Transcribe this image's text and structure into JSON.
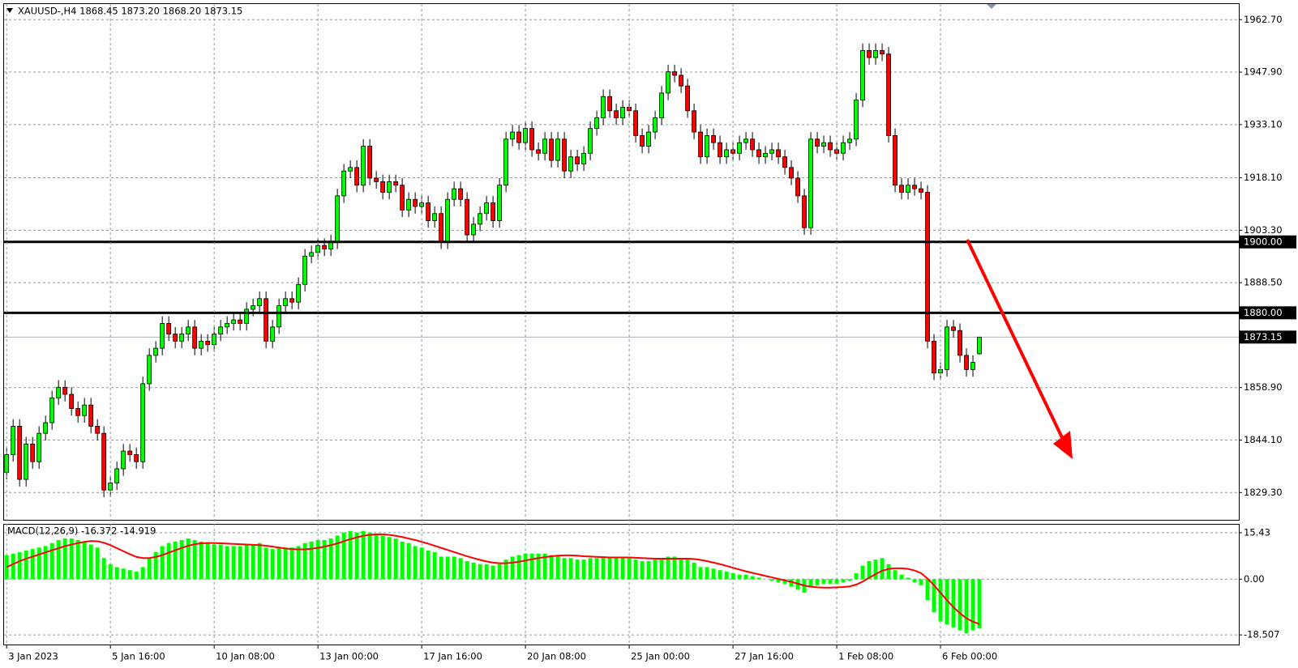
{
  "chart_data": [
    {
      "type": "candlestick",
      "title": "XAUUSD-,H4 1868.45 1873.20 1868.20 1873.15",
      "up_color": "#00ff00",
      "down_color": "#ff0000",
      "wick_color": "#000000",
      "xlim": [
        -0.4,
        190
      ],
      "xticks": [
        {
          "value": 0,
          "label": "3 Jan 2023"
        },
        {
          "value": 16,
          "label": "5 Jan 16:00"
        },
        {
          "value": 32,
          "label": "10 Jan 08:00"
        },
        {
          "value": 48,
          "label": "13 Jan 00:00"
        },
        {
          "value": 64,
          "label": "17 Jan 16:00"
        },
        {
          "value": 80,
          "label": "20 Jan 08:00"
        },
        {
          "value": 96,
          "label": "25 Jan 00:00"
        },
        {
          "value": 112,
          "label": "27 Jan 16:00"
        },
        {
          "value": 128,
          "label": "1 Feb 08:00"
        },
        {
          "value": 144,
          "label": "6 Feb 00:00"
        }
      ],
      "ylim": [
        1821.6,
        1967.1
      ],
      "yticks": [
        {
          "value": 1962.7,
          "label": "1962.70"
        },
        {
          "value": 1947.9,
          "label": "1947.90"
        },
        {
          "value": 1933.1,
          "label": "1933.10"
        },
        {
          "value": 1918.1,
          "label": "1918.10"
        },
        {
          "value": 1903.3,
          "label": "1903.30"
        },
        {
          "value": 1888.5,
          "label": "1888.50"
        },
        {
          "value": 1858.9,
          "label": "1858.90"
        },
        {
          "value": 1844.1,
          "label": "1844.10"
        },
        {
          "value": 1829.3,
          "label": "1829.30"
        }
      ],
      "grid": true,
      "levels": [
        {
          "value": 1900,
          "label": "1900.00"
        },
        {
          "value": 1880,
          "label": "1880.00"
        }
      ],
      "last_price": {
        "value": 1873.15,
        "label": "1873.15"
      },
      "open": [
        1835,
        1840,
        1848,
        1833,
        1843,
        1838,
        1846,
        1849,
        1856,
        1859,
        1857,
        1853,
        1851,
        1854,
        1848,
        1846,
        1830,
        1832,
        1836,
        1841,
        1840,
        1838,
        1860,
        1868,
        1870,
        1877,
        1874,
        1872,
        1874,
        1876,
        1870,
        1872,
        1871,
        1874,
        1876,
        1877,
        1878,
        1877,
        1881,
        1882,
        1884,
        1872,
        1876,
        1882,
        1884,
        1883,
        1888,
        1896,
        1897,
        1899,
        1898,
        1900,
        1913,
        1920,
        1921,
        1916,
        1927,
        1918,
        1917,
        1914,
        1917,
        1916,
        1909,
        1912,
        1910,
        1911,
        1906,
        1908,
        1900,
        1912,
        1915,
        1912,
        1902,
        1905,
        1908,
        1911,
        1906,
        1916,
        1929,
        1931,
        1928,
        1932,
        1926,
        1925,
        1929,
        1923,
        1929,
        1920,
        1924,
        1922,
        1925,
        1932,
        1935,
        1941,
        1937,
        1935,
        1938,
        1937,
        1930,
        1927,
        1931,
        1935,
        1942,
        1948,
        1947,
        1944,
        1937,
        1931,
        1924,
        1930,
        1928,
        1924,
        1926,
        1925,
        1928,
        1929,
        1926,
        1924,
        1925,
        1926,
        1924,
        1921,
        1918,
        1913,
        1904,
        1929,
        1927,
        1928,
        1926,
        1925,
        1928,
        1929,
        1940,
        1954,
        1952,
        1954,
        1953,
        1930,
        1916,
        1914,
        1916,
        1915,
        1914,
        1872,
        1863,
        1864,
        1876,
        1875,
        1868,
        1864,
        1868.45
      ],
      "high": [
        1842,
        1850,
        1850,
        1845,
        1845,
        1848,
        1851,
        1858,
        1861,
        1861,
        1859,
        1855,
        1856,
        1856,
        1850,
        1848,
        1834,
        1838,
        1843,
        1843,
        1842,
        1862,
        1870,
        1872,
        1879,
        1879,
        1876,
        1876,
        1878,
        1878,
        1874,
        1874,
        1876,
        1878,
        1879,
        1880,
        1880,
        1883,
        1884,
        1886,
        1886,
        1878,
        1884,
        1886,
        1886,
        1890,
        1898,
        1899,
        1901,
        1901,
        1902,
        1915,
        1922,
        1923,
        1923,
        1929,
        1929,
        1920,
        1919,
        1919,
        1919,
        1918,
        1914,
        1914,
        1913,
        1913,
        1910,
        1910,
        1914,
        1917,
        1917,
        1914,
        1907,
        1910,
        1913,
        1913,
        1918,
        1931,
        1933,
        1933,
        1934,
        1934,
        1928,
        1931,
        1931,
        1931,
        1931,
        1926,
        1926,
        1927,
        1934,
        1937,
        1943,
        1943,
        1939,
        1940,
        1940,
        1939,
        1932,
        1933,
        1937,
        1944,
        1950,
        1950,
        1949,
        1946,
        1939,
        1933,
        1932,
        1932,
        1930,
        1928,
        1928,
        1930,
        1931,
        1931,
        1928,
        1927,
        1928,
        1928,
        1926,
        1923,
        1920,
        1915,
        1931,
        1931,
        1930,
        1930,
        1928,
        1930,
        1931,
        1942,
        1956,
        1956,
        1956,
        1956,
        1955,
        1932,
        1918,
        1918,
        1918,
        1917,
        1916,
        1874,
        1866,
        1878,
        1878,
        1877,
        1870,
        1868,
        1873.2
      ],
      "low": [
        1833,
        1838,
        1831,
        1831,
        1836,
        1836,
        1844,
        1847,
        1854,
        1855,
        1851,
        1849,
        1849,
        1846,
        1844,
        1828,
        1828,
        1830,
        1834,
        1838,
        1836,
        1836,
        1858,
        1866,
        1868,
        1872,
        1870,
        1870,
        1872,
        1868,
        1868,
        1869,
        1869,
        1872,
        1874,
        1875,
        1875,
        1875,
        1879,
        1880,
        1870,
        1870,
        1874,
        1880,
        1881,
        1881,
        1886,
        1894,
        1895,
        1896,
        1896,
        1898,
        1911,
        1918,
        1914,
        1914,
        1916,
        1915,
        1912,
        1912,
        1914,
        1907,
        1907,
        1908,
        1908,
        1904,
        1904,
        1898,
        1898,
        1910,
        1910,
        1900,
        1900,
        1903,
        1906,
        1904,
        1904,
        1914,
        1927,
        1926,
        1926,
        1924,
        1923,
        1923,
        1921,
        1921,
        1918,
        1918,
        1920,
        1920,
        1923,
        1930,
        1933,
        1935,
        1933,
        1933,
        1935,
        1928,
        1925,
        1925,
        1929,
        1933,
        1940,
        1945,
        1942,
        1935,
        1929,
        1922,
        1922,
        1926,
        1922,
        1922,
        1923,
        1923,
        1926,
        1924,
        1922,
        1922,
        1923,
        1922,
        1919,
        1916,
        1911,
        1902,
        1902,
        1925,
        1925,
        1924,
        1923,
        1923,
        1926,
        1927,
        1938,
        1950,
        1950,
        1951,
        1928,
        1914,
        1912,
        1912,
        1913,
        1912,
        1870,
        1861,
        1861,
        1862,
        1873,
        1866,
        1862,
        1862,
        1868.2
      ],
      "close": [
        1840,
        1848,
        1833,
        1843,
        1838,
        1846,
        1849,
        1856,
        1859,
        1857,
        1853,
        1851,
        1854,
        1848,
        1846,
        1830,
        1832,
        1836,
        1841,
        1840,
        1838,
        1860,
        1868,
        1870,
        1877,
        1874,
        1872,
        1874,
        1876,
        1870,
        1872,
        1871,
        1874,
        1876,
        1877,
        1878,
        1877,
        1881,
        1882,
        1884,
        1872,
        1876,
        1882,
        1884,
        1883,
        1888,
        1896,
        1897,
        1899,
        1898,
        1900,
        1913,
        1920,
        1921,
        1916,
        1927,
        1918,
        1917,
        1914,
        1917,
        1916,
        1909,
        1912,
        1910,
        1911,
        1906,
        1908,
        1900,
        1912,
        1915,
        1912,
        1902,
        1905,
        1908,
        1911,
        1906,
        1916,
        1929,
        1931,
        1928,
        1932,
        1926,
        1925,
        1929,
        1923,
        1929,
        1920,
        1924,
        1922,
        1925,
        1932,
        1935,
        1941,
        1937,
        1935,
        1938,
        1937,
        1930,
        1927,
        1931,
        1935,
        1942,
        1948,
        1947,
        1944,
        1937,
        1931,
        1924,
        1930,
        1928,
        1924,
        1926,
        1925,
        1928,
        1929,
        1926,
        1924,
        1925,
        1926,
        1924,
        1921,
        1918,
        1913,
        1904,
        1929,
        1927,
        1928,
        1926,
        1925,
        1928,
        1929,
        1940,
        1954,
        1952,
        1954,
        1953,
        1930,
        1916,
        1914,
        1916,
        1915,
        1914,
        1872,
        1863,
        1864,
        1876,
        1875,
        1868,
        1864,
        1866,
        1873.15
      ]
    },
    {
      "type": "macd",
      "title": "MACD(12,26,9) -16.372 -14.919",
      "xlim": [
        -0.4,
        190
      ],
      "ylim": [
        -21.7,
        18.1
      ],
      "yticks": [
        15.43,
        {
          "value": 0,
          "label": "0.00"
        },
        -18.507
      ],
      "histogram": {
        "color": "#00ff00",
        "values": [
          8,
          8.5,
          9,
          9.5,
          10,
          10.5,
          11,
          12,
          13,
          13.5,
          13.5,
          13,
          12.5,
          11.5,
          10.5,
          7,
          5,
          4,
          3.5,
          3,
          2.5,
          4,
          7,
          9,
          11,
          12,
          12.5,
          13,
          13.5,
          13,
          12.5,
          12,
          11.5,
          11.5,
          11,
          11,
          11,
          11.5,
          11.5,
          12,
          10.5,
          10,
          10.5,
          10.5,
          10.5,
          11,
          12,
          12.5,
          13,
          13,
          13.5,
          14.5,
          15.5,
          16,
          15.5,
          16,
          15.5,
          15,
          14.5,
          14,
          13.5,
          12.5,
          12,
          11,
          10.5,
          9.5,
          9,
          7.5,
          7.5,
          7.5,
          7,
          6,
          5.5,
          5,
          5,
          4.5,
          5,
          6.5,
          7.5,
          8,
          8.5,
          8.5,
          8.5,
          8.5,
          8,
          8,
          7,
          7,
          6.5,
          6.5,
          7,
          7,
          7.5,
          7.5,
          7,
          7,
          7,
          6.5,
          6,
          6,
          6.5,
          7,
          7.5,
          7.5,
          7,
          6.5,
          5.5,
          4,
          4,
          3.5,
          3,
          2.5,
          2,
          1.5,
          1.5,
          1,
          0.5,
          0,
          -0.5,
          -1,
          -1.5,
          -2.5,
          -3.5,
          -4.5,
          -2.5,
          -2,
          -1.5,
          -1.5,
          -1.5,
          -1,
          -0.5,
          2,
          4.5,
          6,
          6.5,
          7,
          5,
          3,
          1.5,
          0.5,
          -1,
          -2,
          -7,
          -11,
          -14,
          -15,
          -16,
          -17,
          -18,
          -17,
          -16.372
        ]
      },
      "signal": {
        "color": "#ff0000",
        "values": [
          4,
          5,
          6,
          6.8,
          7.5,
          8.2,
          8.9,
          9.6,
          10.3,
          11,
          11.5,
          12,
          12.4,
          12.7,
          12.6,
          12.1,
          11.3,
          10.3,
          9.3,
          8.3,
          7.4,
          7,
          7,
          7.4,
          8,
          8.8,
          9.6,
          10.4,
          11.1,
          11.6,
          11.9,
          12,
          12,
          11.9,
          11.8,
          11.7,
          11.6,
          11.5,
          11.4,
          11.3,
          11.1,
          10.8,
          10.5,
          10.2,
          10,
          9.9,
          9.9,
          10.1,
          10.4,
          10.8,
          11.3,
          11.9,
          12.6,
          13.3,
          13.9,
          14.4,
          14.7,
          14.9,
          14.9,
          14.7,
          14.4,
          14,
          13.5,
          13,
          12.4,
          11.8,
          11.1,
          10.4,
          9.7,
          9,
          8.3,
          7.6,
          7,
          6.4,
          5.9,
          5.5,
          5.3,
          5.3,
          5.5,
          5.8,
          6.2,
          6.6,
          7,
          7.3,
          7.6,
          7.8,
          7.9,
          7.9,
          7.8,
          7.6,
          7.5,
          7.4,
          7.3,
          7.2,
          7.2,
          7.2,
          7.2,
          7.1,
          7,
          6.9,
          6.8,
          6.8,
          6.8,
          6.8,
          6.8,
          6.8,
          6.7,
          6.4,
          6,
          5.5,
          5,
          4.4,
          3.8,
          3.2,
          2.6,
          2.1,
          1.6,
          1.1,
          0.6,
          0.1,
          -0.4,
          -0.9,
          -1.5,
          -2.1,
          -2.5,
          -2.7,
          -2.8,
          -2.8,
          -2.7,
          -2.6,
          -2.4,
          -1.8,
          -0.8,
          0.5,
          1.7,
          2.8,
          3.4,
          3.6,
          3.6,
          3.4,
          2.9,
          2,
          0.2,
          -2,
          -4.5,
          -7,
          -9.3,
          -11.3,
          -13,
          -14.1,
          -14.919
        ]
      }
    }
  ]
}
